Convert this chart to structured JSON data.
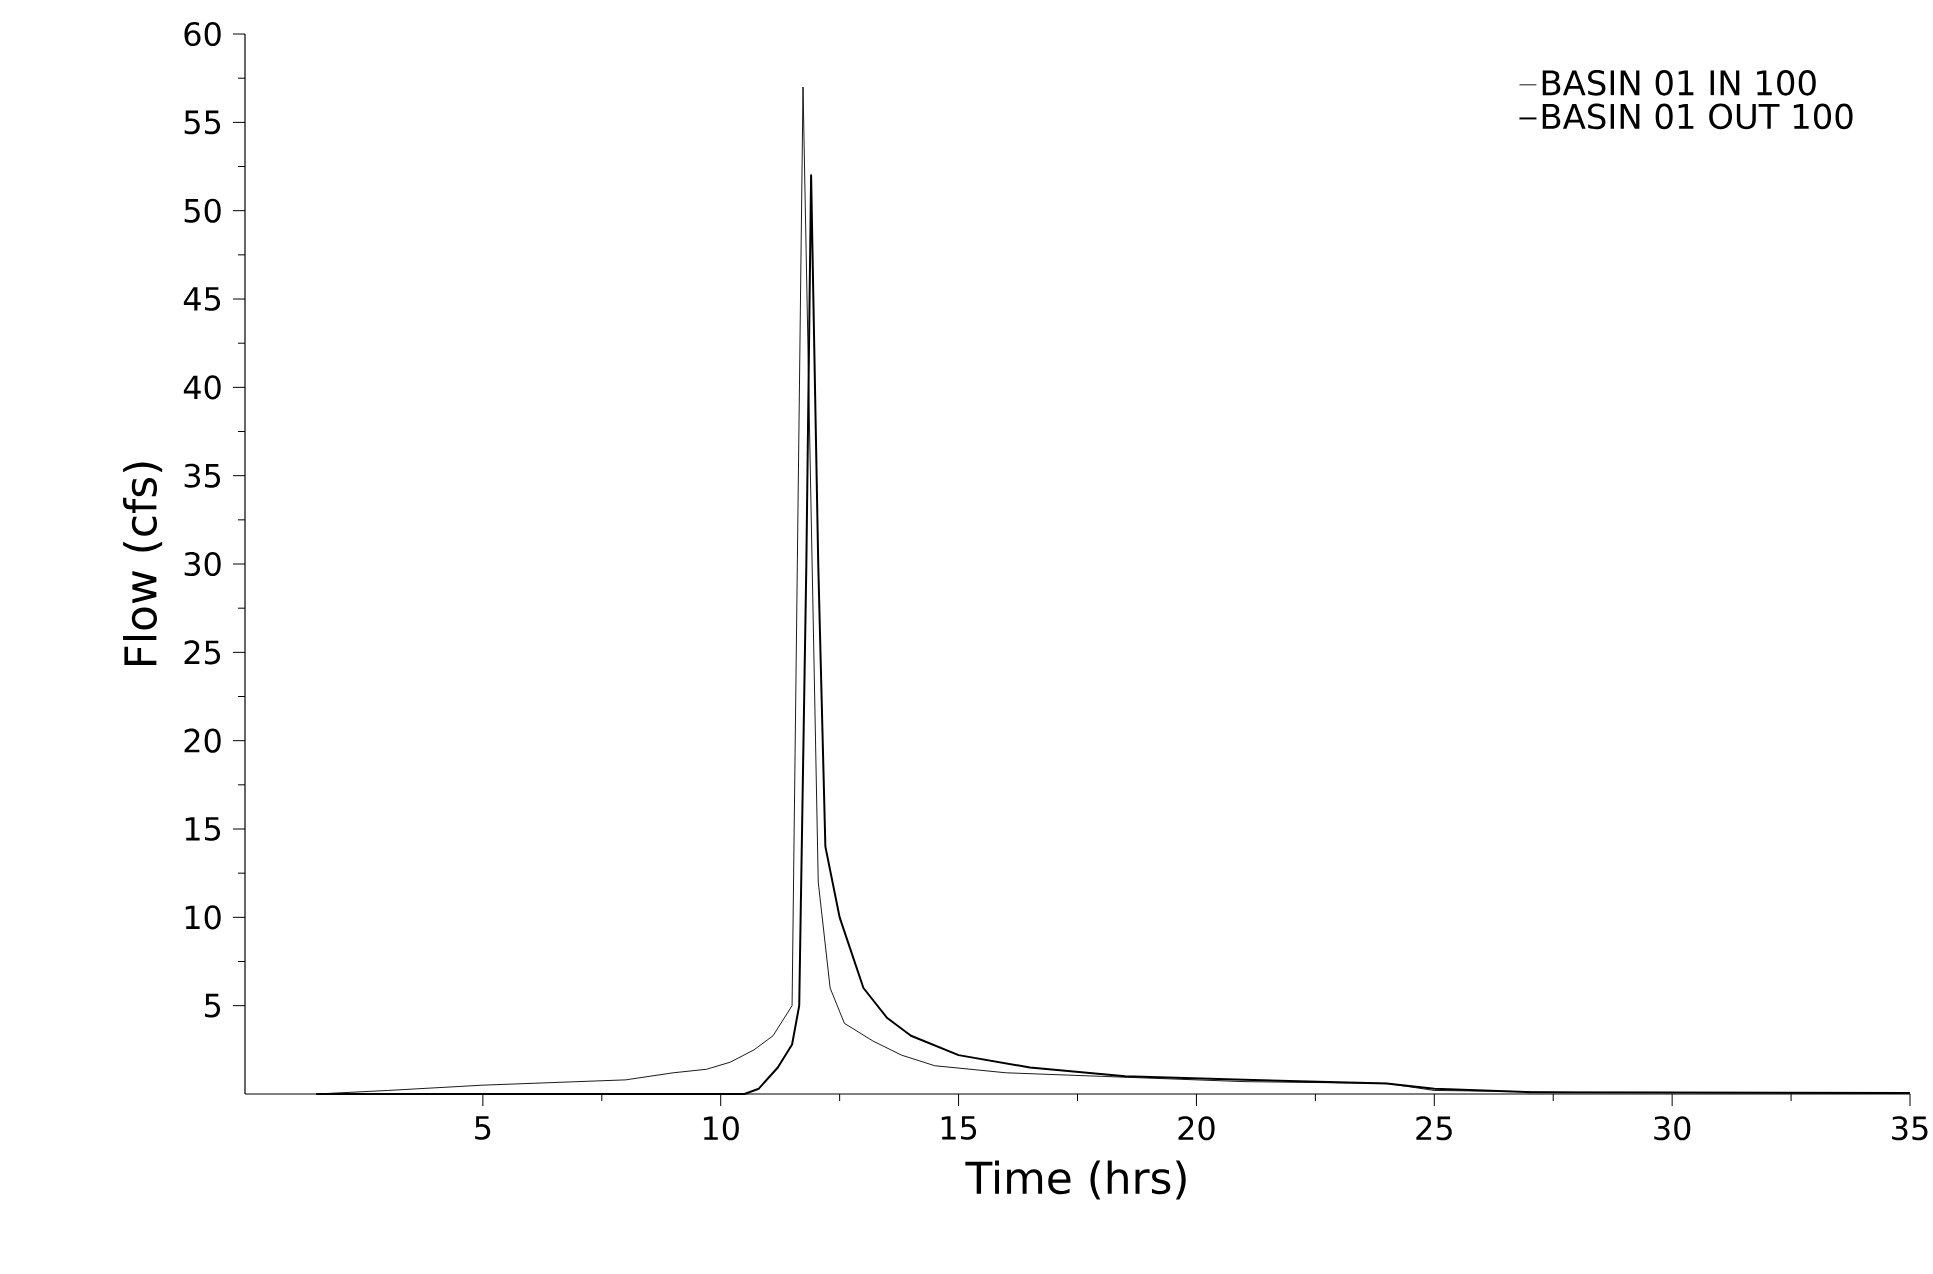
{
  "chart_data": {
    "type": "line",
    "xlabel": "Time (hrs)",
    "ylabel": "Flow (cfs)",
    "xlim": [
      0,
      35
    ],
    "ylim": [
      0,
      60
    ],
    "xticks": [
      5,
      10,
      15,
      20,
      25,
      30,
      35
    ],
    "yticks": [
      5,
      10,
      15,
      20,
      25,
      30,
      35,
      40,
      45,
      50,
      55,
      60
    ],
    "legend": "top right",
    "grid": false,
    "marker": "none",
    "line_style": "solid",
    "series": [
      {
        "name": "BASIN 01 IN 100",
        "color": "#000000",
        "x": [
          1.5,
          3,
          5,
          7,
          8,
          9,
          9.7,
          10.2,
          10.7,
          11.1,
          11.5,
          11.73,
          11.85,
          12.05,
          12.3,
          12.6,
          13.2,
          13.8,
          14.5,
          16,
          18,
          21,
          24,
          25,
          28,
          35
        ],
        "values": [
          0,
          0.2,
          0.5,
          0.7,
          0.8,
          1.2,
          1.4,
          1.8,
          2.5,
          3.3,
          5,
          57,
          40,
          12,
          6,
          4,
          3,
          2.2,
          1.6,
          1.2,
          1,
          0.7,
          0.6,
          0.2,
          0.1,
          0.05
        ]
      },
      {
        "name": "BASIN 01 OUT 100",
        "color": "#000000",
        "x": [
          1.5,
          10.5,
          10.8,
          11.2,
          11.5,
          11.65,
          11.8,
          11.9,
          12.05,
          12.2,
          12.5,
          13,
          13.5,
          14,
          15,
          16.5,
          18.5,
          21,
          24,
          25,
          27,
          35
        ],
        "values": [
          0,
          0,
          0.3,
          1.5,
          2.8,
          5,
          30,
          52,
          30,
          14,
          10,
          6,
          4.3,
          3.3,
          2.2,
          1.5,
          1,
          0.8,
          0.6,
          0.3,
          0.1,
          0.05
        ]
      }
    ]
  }
}
